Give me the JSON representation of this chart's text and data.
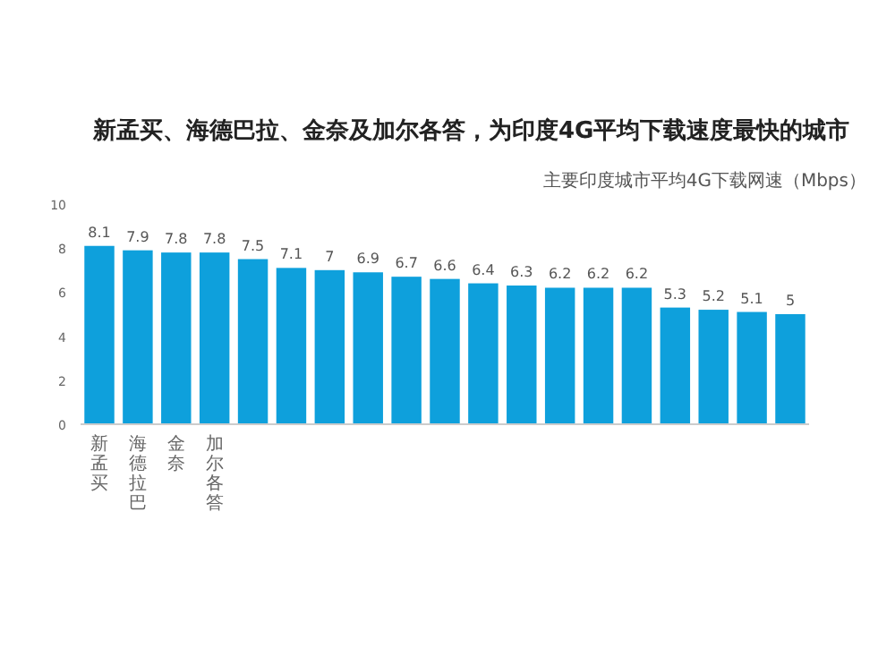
{
  "chart_data": {
    "type": "bar",
    "title": "新孟买、海德巴拉、金奈及加尔各答，为印度4G平均下载速度最快的城市",
    "subtitle": "主要印度城市平均4G下载网速（Mbps）",
    "categories": [
      "新孟买",
      "海德拉巴",
      "金奈",
      "加尔各答",
      null,
      null,
      null,
      null,
      null,
      null,
      null,
      null,
      null,
      null,
      null,
      null,
      null,
      null,
      null
    ],
    "values": [
      8.1,
      7.9,
      7.8,
      7.8,
      7.5,
      7.1,
      7,
      6.9,
      6.7,
      6.6,
      6.4,
      6.3,
      6.2,
      6.2,
      6.2,
      5.3,
      5.2,
      5.1,
      5
    ],
    "color": "#0ea0dc",
    "ylim": [
      0,
      10
    ],
    "yticks": [
      0,
      2,
      4,
      6,
      8,
      10
    ],
    "data_labels": true
  }
}
